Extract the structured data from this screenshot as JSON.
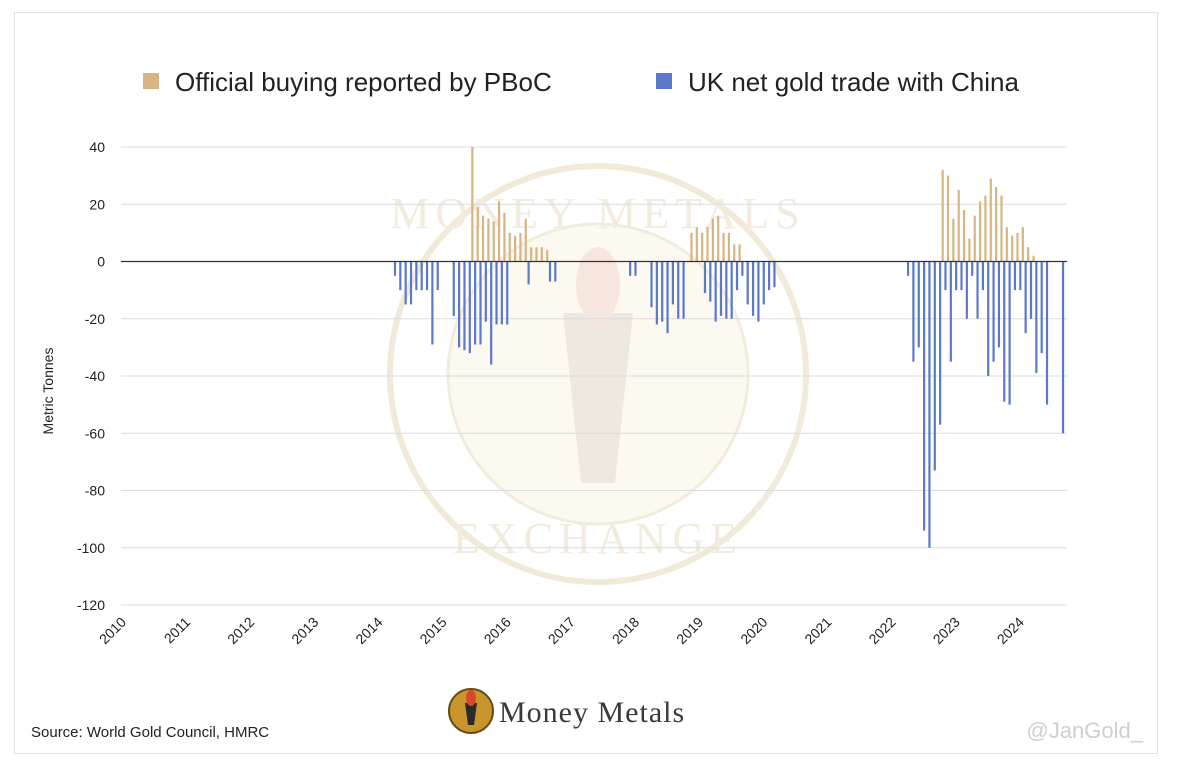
{
  "colors": {
    "pboc": "#d8b483",
    "uk": "#5b79c8",
    "grid": "#dcdcdc",
    "zero_line": "#333333",
    "watermark": "#efe3cc"
  },
  "footer": {
    "source": "Source: World Gold Council, HMRC",
    "brand": "Money Metals",
    "brand_icon": "torch-logo-icon",
    "handle": "@JanGold_"
  },
  "watermark": {
    "top_text": "MONEY METALS",
    "bottom_text": "EXCHANGE"
  },
  "chart_data": {
    "type": "bar",
    "ylabel": "Metric Tonnes",
    "xlabel": "",
    "ylim": [
      -120,
      40
    ],
    "yticks": [
      40,
      20,
      0,
      -20,
      -40,
      -60,
      -80,
      -100,
      -120
    ],
    "xlim": [
      2010,
      2024.75
    ],
    "xticks": [
      "2010",
      "2011",
      "2012",
      "2013",
      "2014",
      "2015",
      "2016",
      "2017",
      "2018",
      "2019",
      "2020",
      "2021",
      "2022",
      "2023",
      "2024"
    ],
    "grid": true,
    "legend_position": "top",
    "series": [
      {
        "name": "Official buying reported by PBoC",
        "color_key": "pboc",
        "points": [
          [
            "2015-07",
            40
          ],
          [
            "2015-08",
            19
          ],
          [
            "2015-09",
            16
          ],
          [
            "2015-10",
            15
          ],
          [
            "2015-11",
            14
          ],
          [
            "2015-12",
            21
          ],
          [
            "2016-01",
            17
          ],
          [
            "2016-02",
            10
          ],
          [
            "2016-03",
            9
          ],
          [
            "2016-04",
            10
          ],
          [
            "2016-05",
            15
          ],
          [
            "2016-06",
            5
          ],
          [
            "2016-07",
            5
          ],
          [
            "2016-08",
            5
          ],
          [
            "2016-09",
            4
          ],
          [
            "2018-12",
            10
          ],
          [
            "2019-01",
            12
          ],
          [
            "2019-02",
            10
          ],
          [
            "2019-03",
            12
          ],
          [
            "2019-04",
            15
          ],
          [
            "2019-05",
            16
          ],
          [
            "2019-06",
            10
          ],
          [
            "2019-07",
            10
          ],
          [
            "2019-08",
            6
          ],
          [
            "2019-09",
            6
          ],
          [
            "2022-11",
            32
          ],
          [
            "2022-12",
            30
          ],
          [
            "2023-01",
            15
          ],
          [
            "2023-02",
            25
          ],
          [
            "2023-03",
            18
          ],
          [
            "2023-04",
            8
          ],
          [
            "2023-05",
            16
          ],
          [
            "2023-06",
            21
          ],
          [
            "2023-07",
            23
          ],
          [
            "2023-08",
            29
          ],
          [
            "2023-09",
            26
          ],
          [
            "2023-10",
            23
          ],
          [
            "2023-11",
            12
          ],
          [
            "2023-12",
            9
          ],
          [
            "2024-01",
            10
          ],
          [
            "2024-02",
            12
          ],
          [
            "2024-03",
            5
          ],
          [
            "2024-04",
            2
          ]
        ]
      },
      {
        "name": "UK net gold trade with China",
        "color_key": "uk",
        "points": [
          [
            "2014-04",
            -5
          ],
          [
            "2014-05",
            -10
          ],
          [
            "2014-06",
            -15
          ],
          [
            "2014-07",
            -15
          ],
          [
            "2014-08",
            -10
          ],
          [
            "2014-09",
            -10
          ],
          [
            "2014-10",
            -10
          ],
          [
            "2014-11",
            -29
          ],
          [
            "2014-12",
            -10
          ],
          [
            "2015-03",
            -19
          ],
          [
            "2015-04",
            -30
          ],
          [
            "2015-05",
            -31
          ],
          [
            "2015-06",
            -32
          ],
          [
            "2015-07",
            -29
          ],
          [
            "2015-08",
            -29
          ],
          [
            "2015-09",
            -21
          ],
          [
            "2015-10",
            -36
          ],
          [
            "2015-11",
            -22
          ],
          [
            "2015-12",
            -22
          ],
          [
            "2016-01",
            -22
          ],
          [
            "2016-05",
            -8
          ],
          [
            "2016-09",
            -7
          ],
          [
            "2016-10",
            -7
          ],
          [
            "2017-12",
            -5
          ],
          [
            "2018-01",
            -5
          ],
          [
            "2018-04",
            -16
          ],
          [
            "2018-05",
            -22
          ],
          [
            "2018-06",
            -21
          ],
          [
            "2018-07",
            -25
          ],
          [
            "2018-08",
            -15
          ],
          [
            "2018-09",
            -20
          ],
          [
            "2018-10",
            -20
          ],
          [
            "2019-02",
            -11
          ],
          [
            "2019-03",
            -14
          ],
          [
            "2019-04",
            -21
          ],
          [
            "2019-05",
            -19
          ],
          [
            "2019-06",
            -20
          ],
          [
            "2019-07",
            -20
          ],
          [
            "2019-08",
            -10
          ],
          [
            "2019-09",
            -5
          ],
          [
            "2019-10",
            -15
          ],
          [
            "2019-11",
            -19
          ],
          [
            "2019-12",
            -21
          ],
          [
            "2020-01",
            -15
          ],
          [
            "2020-02",
            -10
          ],
          [
            "2020-03",
            -9
          ],
          [
            "2022-04",
            -5
          ],
          [
            "2022-05",
            -35
          ],
          [
            "2022-06",
            -30
          ],
          [
            "2022-07",
            -94
          ],
          [
            "2022-08",
            -100
          ],
          [
            "2022-09",
            -73
          ],
          [
            "2022-10",
            -57
          ],
          [
            "2022-11",
            -10
          ],
          [
            "2022-12",
            -35
          ],
          [
            "2023-01",
            -10
          ],
          [
            "2023-02",
            -10
          ],
          [
            "2023-03",
            -20
          ],
          [
            "2023-04",
            -5
          ],
          [
            "2023-05",
            -20
          ],
          [
            "2023-06",
            -10
          ],
          [
            "2023-07",
            -40
          ],
          [
            "2023-08",
            -35
          ],
          [
            "2023-09",
            -30
          ],
          [
            "2023-10",
            -49
          ],
          [
            "2023-11",
            -50
          ],
          [
            "2023-12",
            -10
          ],
          [
            "2024-01",
            -10
          ],
          [
            "2024-02",
            -25
          ],
          [
            "2024-03",
            -20
          ],
          [
            "2024-04",
            -39
          ],
          [
            "2024-05",
            -32
          ],
          [
            "2024-06",
            -50
          ],
          [
            "2024-09",
            -60
          ]
        ]
      }
    ]
  }
}
